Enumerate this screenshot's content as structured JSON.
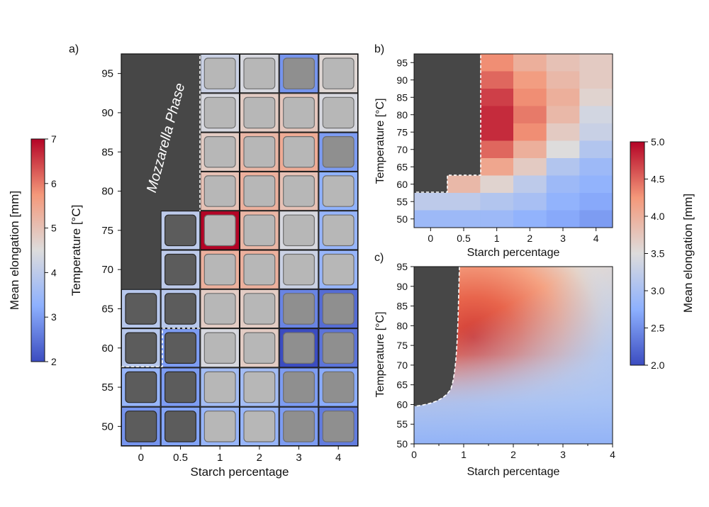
{
  "panel_labels": {
    "a": "a)",
    "b": "b)",
    "c": "c)"
  },
  "colorbar_left": {
    "label": "Mean elongation [mm]",
    "min": 2,
    "max": 7,
    "ticks": [
      "2",
      "3",
      "4",
      "5",
      "6",
      "7"
    ]
  },
  "colorbar_right": {
    "label": "Mean elongation [mm]",
    "min": 2.0,
    "max": 5.0,
    "ticks": [
      "2.0",
      "2.5",
      "3.0",
      "3.5",
      "4.0",
      "4.5",
      "5.0"
    ]
  },
  "panel_a": {
    "phase_label": "Mozzarella Phase",
    "xlabel": "Starch percentage",
    "ylabel": "Temperature [°C]",
    "x_ticks": [
      "0",
      "0.5",
      "1",
      "2",
      "3",
      "4"
    ],
    "y_ticks": [
      "95",
      "90",
      "85",
      "80",
      "75",
      "70",
      "65",
      "60",
      "55",
      "50"
    ]
  },
  "panel_b": {
    "xlabel": "Starch percentage",
    "ylabel": "Temperature [°C]",
    "x_ticks": [
      "0",
      "0.5",
      "1",
      "2",
      "3",
      "4"
    ],
    "y_ticks": [
      "95",
      "90",
      "85",
      "80",
      "75",
      "70",
      "65",
      "60",
      "55",
      "50"
    ]
  },
  "panel_c": {
    "xlabel": "Starch percentage",
    "ylabel": "Temperature [°C]",
    "x_ticks": [
      "0",
      "1",
      "2",
      "3",
      "4"
    ],
    "y_ticks": [
      "95",
      "90",
      "85",
      "80",
      "75",
      "70",
      "65",
      "60",
      "55",
      "50"
    ]
  },
  "chart_data": [
    {
      "type": "heatmap",
      "panel": "a",
      "title": "",
      "xlabel": "Starch percentage",
      "ylabel": "Temperature [°C]",
      "x": [
        "0",
        "0.5",
        "1",
        "2",
        "3",
        "4"
      ],
      "y": [
        "95",
        "90",
        "85",
        "80",
        "75",
        "70",
        "65",
        "60",
        "55",
        "50"
      ],
      "values": [
        [
          null,
          null,
          4.2,
          4.4,
          2.9,
          4.6
        ],
        [
          null,
          null,
          4.4,
          4.8,
          4.9,
          4.4
        ],
        [
          null,
          null,
          4.8,
          5.2,
          5.4,
          3.0
        ],
        [
          null,
          null,
          5.0,
          5.3,
          5.0,
          3.3
        ],
        [
          null,
          4.0,
          7.0,
          5.2,
          4.4,
          3.4
        ],
        [
          null,
          4.0,
          5.3,
          5.3,
          4.2,
          3.4
        ],
        [
          3.9,
          3.9,
          4.8,
          4.8,
          2.7,
          2.4
        ],
        [
          3.9,
          3.0,
          4.4,
          4.8,
          2.0,
          2.5
        ],
        [
          3.4,
          3.0,
          3.6,
          3.6,
          3.0,
          3.2
        ],
        [
          2.9,
          3.1,
          3.4,
          3.4,
          3.0,
          2.6
        ]
      ],
      "colormap": "coolwarm",
      "vmin": 2,
      "vmax": 7
    },
    {
      "type": "heatmap",
      "panel": "b",
      "title": "",
      "xlabel": "Starch percentage",
      "ylabel": "Temperature [°C]",
      "x": [
        "0",
        "0.5",
        "1",
        "2",
        "3",
        "4"
      ],
      "y": [
        "95",
        "90",
        "85",
        "80",
        "75",
        "70",
        "65",
        "60",
        "55",
        "50"
      ],
      "values": [
        [
          null,
          null,
          4.3,
          4.0,
          3.8,
          3.7
        ],
        [
          null,
          null,
          4.5,
          4.2,
          3.9,
          3.7
        ],
        [
          null,
          null,
          4.7,
          4.3,
          4.0,
          3.6
        ],
        [
          null,
          null,
          4.8,
          4.4,
          3.9,
          3.4
        ],
        [
          null,
          null,
          4.8,
          4.3,
          3.7,
          3.3
        ],
        [
          null,
          null,
          4.5,
          4.0,
          3.5,
          3.1
        ],
        [
          null,
          null,
          4.1,
          3.7,
          3.1,
          2.9
        ],
        [
          null,
          3.9,
          3.6,
          3.2,
          2.9,
          2.8
        ],
        [
          3.2,
          3.2,
          3.1,
          3.0,
          2.8,
          2.7
        ],
        [
          2.9,
          2.9,
          2.9,
          2.8,
          2.7,
          2.6
        ]
      ],
      "colormap": "coolwarm",
      "vmin": 2.0,
      "vmax": 5.0
    },
    {
      "type": "heatmap",
      "panel": "c",
      "title": "",
      "xlabel": "Starch percentage",
      "ylabel": "Temperature [°C]",
      "xlim": [
        0,
        4
      ],
      "ylim": [
        50,
        95
      ],
      "interpolated": true,
      "peak": {
        "x": 1.0,
        "y": 76,
        "value": 5.0
      },
      "masked_region_boundary": [
        [
          0,
          59.5
        ],
        [
          0.5,
          61
        ],
        [
          0.7,
          63
        ],
        [
          0.8,
          70
        ],
        [
          0.85,
          80
        ],
        [
          0.9,
          95
        ]
      ],
      "colormap": "coolwarm",
      "vmin": 2.0,
      "vmax": 5.0
    }
  ]
}
